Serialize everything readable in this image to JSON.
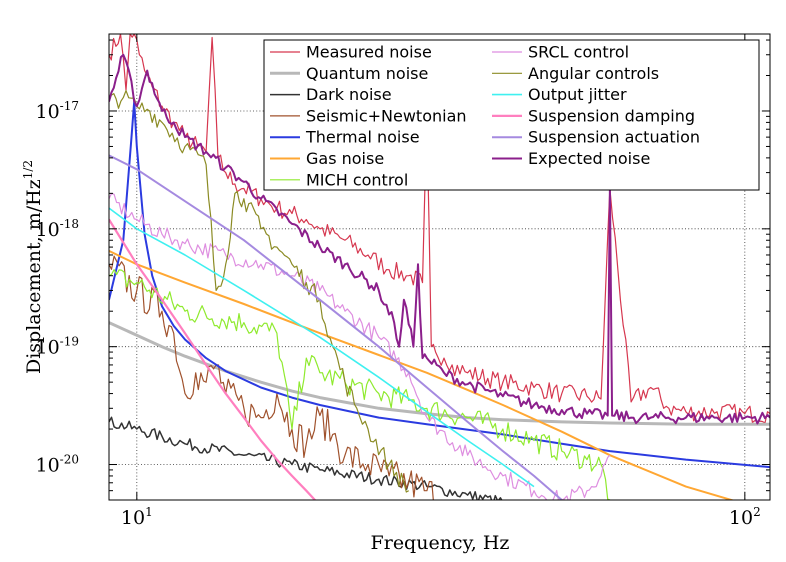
{
  "chart_data": {
    "type": "line",
    "title": "",
    "xlabel": "Frequency, Hz",
    "ylabel": "Displacement, m/Hz",
    "ylabel_exponent": "1/2",
    "xscale": "log",
    "yscale": "log",
    "xlim": [
      9,
      110
    ],
    "ylim": [
      5e-21,
      4.5e-17
    ],
    "grid": true,
    "legend_placement": "top-right",
    "x_ticks": [
      {
        "value": 10,
        "base": "10",
        "exp": "1"
      },
      {
        "value": 100,
        "base": "10",
        "exp": "2"
      }
    ],
    "y_ticks": [
      {
        "value": 1e-20,
        "base": "10",
        "exp": "-20"
      },
      {
        "value": 1e-19,
        "base": "10",
        "exp": "-19"
      },
      {
        "value": 1e-18,
        "base": "10",
        "exp": "-18"
      },
      {
        "value": 1e-17,
        "base": "10",
        "exp": "-17"
      }
    ],
    "series": [
      {
        "name": "Measured noise",
        "color": "#d6374f",
        "width": 1.2,
        "noise": 0.08,
        "x": [
          9,
          9.4,
          9.6,
          9.75,
          9.9,
          10.1,
          10.3,
          10.6,
          11,
          11.5,
          12,
          12.6,
          13,
          13.3,
          13.6,
          14,
          14.5,
          15,
          16,
          17,
          18,
          19,
          20,
          22,
          24,
          26,
          28,
          29.5,
          30,
          30.5,
          31,
          32,
          33,
          35,
          40,
          45,
          50,
          55,
          58,
          60,
          65,
          70,
          75,
          80,
          90,
          100,
          110
        ],
        "y": [
          3e-17,
          4.5e-17,
          1.5e-17,
          4.5e-17,
          4.5e-17,
          3e-17,
          2.2e-17,
          1.6e-17,
          1.1e-17,
          8e-18,
          6e-18,
          5e-18,
          4.5e-18,
          4.2e-17,
          4e-18,
          3e-18,
          2.4e-18,
          2.2e-18,
          1.8e-18,
          1.5e-18,
          1.35e-18,
          1.2e-18,
          1e-18,
          8e-19,
          6e-19,
          4.5e-19,
          4e-19,
          3.5e-19,
          8e-18,
          1e-19,
          9e-20,
          8e-20,
          7e-20,
          6e-20,
          5e-20,
          4.5e-20,
          4e-20,
          3.8e-20,
          3.6e-20,
          2.2e-18,
          3.4e-20,
          4.5e-20,
          3e-20,
          2.8e-20,
          2.8e-20,
          2.7e-20,
          2.7e-20
        ]
      },
      {
        "name": "Quantum noise",
        "color": "#b8b8b8",
        "width": 3,
        "noise": 0,
        "x": [
          9,
          10,
          11,
          12,
          14,
          16,
          18,
          20,
          25,
          30,
          35,
          40,
          50,
          60,
          80,
          110
        ],
        "y": [
          1.6e-19,
          1.25e-19,
          1e-19,
          8.3e-20,
          6.2e-20,
          5e-20,
          4.2e-20,
          3.7e-20,
          3e-20,
          2.7e-20,
          2.5e-20,
          2.4e-20,
          2.3e-20,
          2.25e-20,
          2.2e-20,
          2.2e-20
        ]
      },
      {
        "name": "Dark noise",
        "color": "#333333",
        "width": 1.5,
        "noise": 0.05,
        "x": [
          9,
          10,
          12,
          15,
          18,
          20,
          25,
          30,
          35,
          40
        ],
        "y": [
          2.3e-20,
          2e-20,
          1.5e-20,
          1.2e-20,
          1e-20,
          9e-21,
          7.5e-21,
          6.5e-21,
          5.5e-21,
          4.8e-21
        ]
      },
      {
        "name": "Seismic+Newtonian",
        "color": "#a0522d",
        "width": 1.2,
        "noise": 0.15,
        "x": [
          9,
          10,
          11,
          11.5,
          12,
          12.5,
          13,
          13.5,
          14,
          15,
          16,
          17,
          18,
          19,
          20,
          21,
          22,
          24,
          26,
          28,
          30,
          32
        ],
        "y": [
          5e-19,
          3e-19,
          2e-19,
          1.3e-19,
          4e-20,
          6e-20,
          5e-20,
          7e-20,
          4e-20,
          3e-20,
          2.5e-20,
          4e-20,
          2e-20,
          1.5e-20,
          2.6e-20,
          1.8e-20,
          1.2e-20,
          1e-20,
          8e-21,
          7e-21,
          6e-21,
          5e-21
        ]
      },
      {
        "name": "Thermal noise",
        "color": "#2b3be0",
        "width": 2,
        "noise": 0,
        "x": [
          9,
          9.5,
          9.8,
          9.9,
          10,
          10.3,
          10.6,
          11,
          11.5,
          12,
          13,
          14,
          16,
          18,
          20,
          25,
          30,
          40,
          50,
          60,
          80,
          110
        ],
        "y": [
          2.5e-19,
          8e-19,
          6e-18,
          1.2e-17,
          5e-18,
          9e-19,
          4e-19,
          2.2e-19,
          1.5e-19,
          1.15e-19,
          8e-20,
          6.2e-20,
          4.5e-20,
          3.7e-20,
          3.2e-20,
          2.5e-20,
          2.2e-20,
          1.8e-20,
          1.5e-20,
          1.3e-20,
          1.1e-20,
          9.5e-21
        ]
      },
      {
        "name": "Gas noise",
        "color": "#ffa733",
        "width": 2,
        "noise": 0,
        "x": [
          9,
          10,
          12,
          15,
          20,
          25,
          30,
          35,
          40,
          50,
          60,
          80,
          110
        ],
        "y": [
          6.5e-19,
          5e-19,
          3.5e-19,
          2.3e-19,
          1.3e-19,
          8.5e-20,
          6e-20,
          4.3e-20,
          3.2e-20,
          1.9e-20,
          1.2e-20,
          6.5e-21,
          4e-21
        ]
      },
      {
        "name": "MICH control",
        "color": "#8fea2e",
        "width": 1.2,
        "noise": 0.1,
        "x": [
          9,
          10,
          12,
          15,
          17,
          18,
          19,
          20,
          22,
          25,
          28,
          30,
          35,
          40,
          45,
          50,
          55,
          58,
          60
        ],
        "y": [
          4e-19,
          3.5e-19,
          2e-19,
          1.6e-19,
          1.3e-19,
          2e-20,
          8e-20,
          6e-20,
          5e-20,
          4e-20,
          3.5e-20,
          3e-20,
          2.5e-20,
          2e-20,
          1.6e-20,
          1.3e-20,
          1.1e-20,
          1e-20,
          5e-21
        ]
      },
      {
        "name": "SRCL control",
        "color": "#de8ee0",
        "width": 1.2,
        "noise": 0.07,
        "x": [
          9,
          10,
          11,
          12,
          14,
          16,
          18,
          20,
          22,
          25,
          28,
          30,
          35,
          40,
          45,
          50,
          55,
          58,
          60
        ],
        "y": [
          1.8e-18,
          1.2e-18,
          9e-19,
          7.5e-19,
          6e-19,
          5e-19,
          4e-19,
          3e-19,
          2e-19,
          1.2e-19,
          6e-20,
          2.5e-20,
          1.2e-20,
          8e-21,
          6e-21,
          5e-21,
          6e-21,
          8e-21,
          1.2e-20
        ]
      },
      {
        "name": "Angular controls",
        "color": "#8b8b24",
        "width": 1.2,
        "noise": 0.08,
        "x": [
          9,
          9.5,
          10,
          10.5,
          11,
          12,
          13,
          13.5,
          14,
          14.5,
          15,
          16,
          17,
          18,
          19,
          20,
          21,
          22,
          23,
          24,
          26,
          28
        ],
        "y": [
          1.2e-17,
          1.3e-17,
          1.1e-17,
          1e-17,
          8e-18,
          5e-18,
          3.5e-18,
          3e-19,
          5e-19,
          2e-18,
          1.8e-18,
          1e-18,
          7e-19,
          5e-19,
          3.5e-19,
          2.5e-19,
          1e-19,
          5e-20,
          3e-20,
          2e-20,
          1e-20,
          6e-21
        ]
      },
      {
        "name": "Output jitter",
        "color": "#3ff0f0",
        "width": 1.6,
        "noise": 0,
        "x": [
          9,
          10,
          12,
          15,
          20,
          25,
          30,
          35,
          40,
          45
        ],
        "y": [
          1.5e-18,
          1e-18,
          6e-19,
          3e-19,
          1.2e-19,
          5.5e-20,
          2.8e-20,
          1.6e-20,
          1e-20,
          6.5e-21
        ]
      },
      {
        "name": "Suspension damping",
        "color": "#ff7fbf",
        "width": 2.2,
        "noise": 0,
        "x": [
          9,
          10,
          11,
          12,
          13,
          14,
          15,
          16,
          17,
          18,
          19,
          20
        ],
        "y": [
          1.2e-18,
          5e-19,
          2.5e-19,
          1.3e-19,
          7e-20,
          4e-20,
          2.5e-20,
          1.6e-20,
          1.1e-20,
          8e-21,
          6e-21,
          4.5e-21
        ]
      },
      {
        "name": "Suspension actuation",
        "color": "#a58ae0",
        "width": 2,
        "noise": 0,
        "x": [
          9,
          10,
          15,
          20,
          25,
          30,
          35,
          40,
          45,
          50
        ],
        "y": [
          4.2e-18,
          3.2e-18,
          8e-19,
          2.5e-19,
          1e-19,
          4.5e-20,
          2.3e-20,
          1.3e-20,
          8e-21,
          5e-21
        ]
      },
      {
        "name": "Expected noise",
        "color": "#8b1f8b",
        "width": 2,
        "noise": 0.05,
        "x": [
          9,
          9.5,
          10,
          10.4,
          11,
          11.5,
          12,
          13,
          14,
          15,
          16,
          18,
          20,
          22,
          25,
          26.5,
          27,
          27.5,
          28.5,
          29,
          29.5,
          30,
          32,
          35,
          40,
          45,
          50,
          55,
          59.5,
          60,
          60.5,
          65,
          70,
          80,
          90,
          100,
          110
        ],
        "y": [
          1.2e-17,
          3e-17,
          1.1e-17,
          2.2e-17,
          1e-17,
          8e-18,
          6e-18,
          4.5e-18,
          3.3e-18,
          2.5e-18,
          1.8e-18,
          1.1e-18,
          7e-19,
          5e-19,
          3e-19,
          1.6e-19,
          1e-19,
          2.5e-19,
          1e-19,
          5e-19,
          8e-20,
          8e-20,
          6e-20,
          4.8e-20,
          3.8e-20,
          3.2e-20,
          2.9e-20,
          2.7e-20,
          2.6e-20,
          2.2e-18,
          2.6e-20,
          2.5e-20,
          2.5e-20,
          2.5e-20,
          2.5e-20,
          2.5e-20,
          2.5e-20
        ]
      }
    ]
  }
}
